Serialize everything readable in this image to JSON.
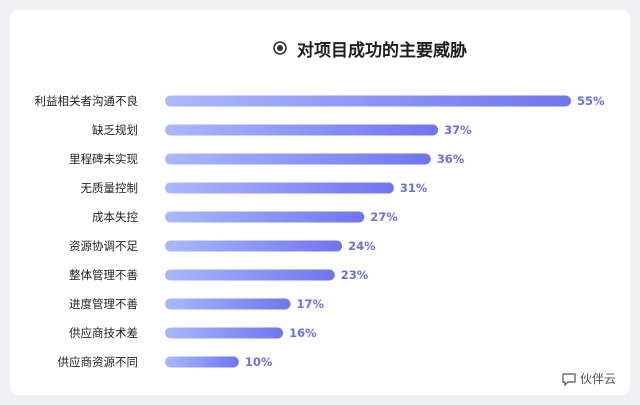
{
  "chart_data": {
    "type": "bar",
    "orientation": "horizontal",
    "title": "对项目成功的主要威胁",
    "categories": [
      "利益相关者沟通不良",
      "缺乏规划",
      "里程碑未实现",
      "无质量控制",
      "成本失控",
      "资源协调不足",
      "整体管理不善",
      "进度管理不善",
      "供应商技术差",
      "供应商资源不同"
    ],
    "values": [
      55,
      37,
      36,
      31,
      27,
      24,
      23,
      17,
      16,
      10
    ],
    "value_labels": [
      "55%",
      "37%",
      "36%",
      "31%",
      "27%",
      "24%",
      "23%",
      "17%",
      "16%",
      "10%"
    ],
    "xlim": [
      0,
      55
    ],
    "grid": false,
    "colors": {
      "bar_start": "#a9b9ff",
      "bar_end": "#6f74f2",
      "label": "#6b6fe8"
    }
  },
  "watermark": {
    "text": "伙伴云"
  }
}
